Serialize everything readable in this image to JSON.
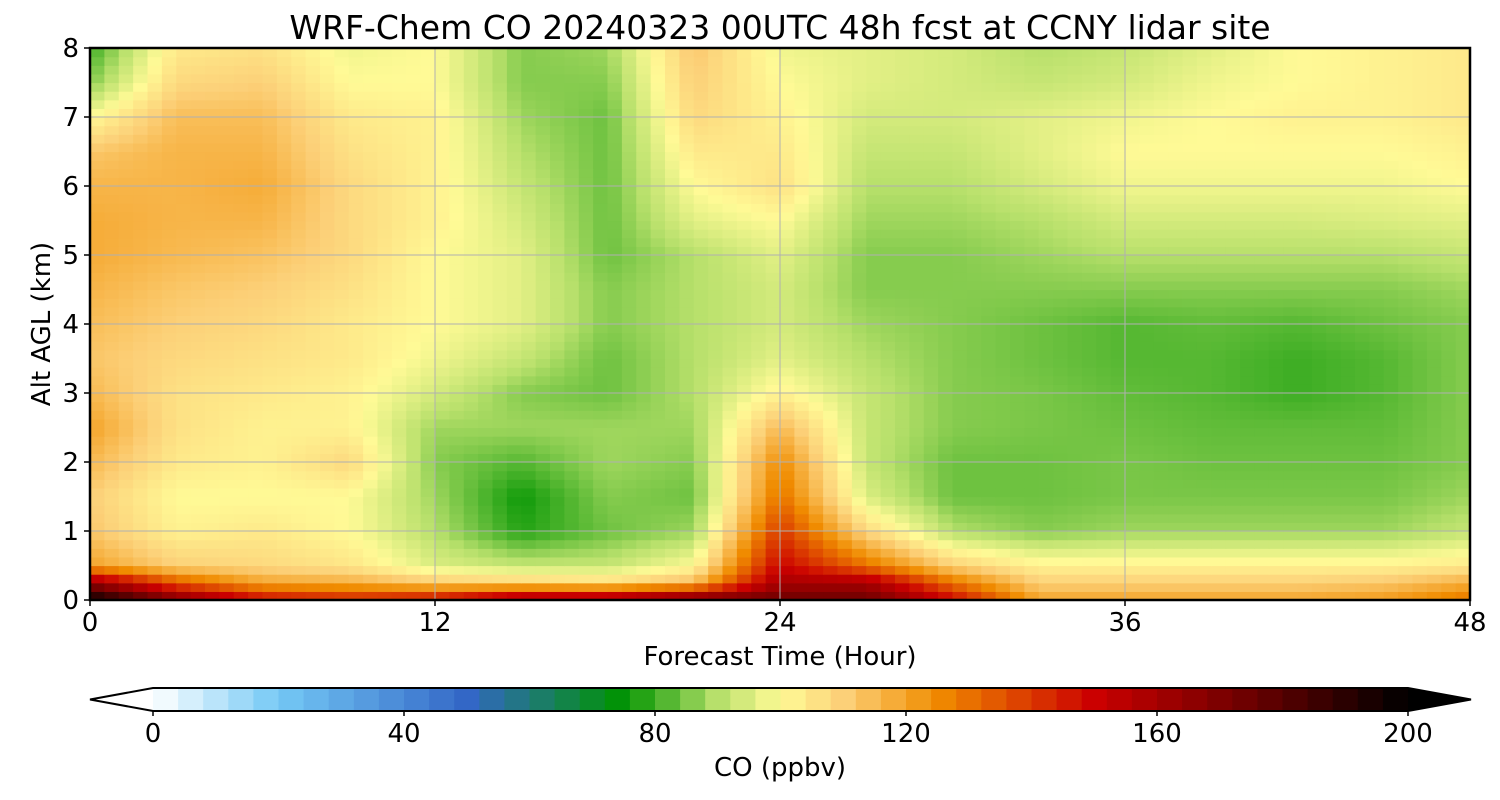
{
  "chart_data": {
    "type": "heatmap",
    "title": "WRF-Chem CO  20240323 00UTC 48h fcst at CCNY lidar site",
    "xlabel": "Forecast Time (Hour)",
    "ylabel": "Alt AGL (km)",
    "xlim": [
      0,
      48
    ],
    "ylim": [
      0,
      8
    ],
    "x_ticks": [
      "0",
      "12",
      "24",
      "36",
      "48"
    ],
    "y_ticks": [
      "0",
      "1",
      "2",
      "3",
      "4",
      "5",
      "6",
      "7",
      "8"
    ],
    "grid": true,
    "x": [
      0,
      3,
      6,
      9,
      12,
      15,
      18,
      21,
      24,
      27,
      30,
      33,
      36,
      39,
      42,
      45,
      48
    ],
    "y": [
      0,
      0.25,
      0.5,
      1,
      1.5,
      2,
      2.5,
      3,
      3.5,
      4,
      4.5,
      5,
      5.5,
      6,
      6.5,
      7,
      7.5,
      8
    ],
    "z": [
      [
        200,
        170,
        150,
        145,
        150,
        165,
        165,
        175,
        175,
        175,
        150,
        120,
        120,
        120,
        120,
        122,
        130
      ],
      [
        165,
        135,
        120,
        118,
        112,
        110,
        108,
        115,
        160,
        160,
        130,
        110,
        110,
        110,
        110,
        112,
        118
      ],
      [
        120,
        110,
        108,
        105,
        95,
        92,
        92,
        100,
        150,
        130,
        110,
        102,
        102,
        102,
        102,
        102,
        104
      ],
      [
        112,
        102,
        104,
        100,
        90,
        78,
        84,
        88,
        140,
        108,
        90,
        86,
        88,
        88,
        88,
        88,
        92
      ],
      [
        110,
        100,
        100,
        100,
        88,
        76,
        86,
        84,
        130,
        95,
        84,
        84,
        85,
        85,
        85,
        85,
        88
      ],
      [
        115,
        104,
        102,
        108,
        86,
        82,
        88,
        86,
        125,
        92,
        84,
        84,
        85,
        84,
        84,
        84,
        86
      ],
      [
        120,
        106,
        102,
        102,
        88,
        88,
        88,
        88,
        115,
        92,
        86,
        85,
        84,
        83,
        83,
        83,
        86
      ],
      [
        115,
        106,
        104,
        102,
        94,
        86,
        84,
        90,
        102,
        92,
        86,
        85,
        83,
        82,
        80,
        82,
        86
      ],
      [
        112,
        108,
        106,
        104,
        98,
        92,
        84,
        90,
        96,
        90,
        86,
        84,
        82,
        82,
        80,
        82,
        86
      ],
      [
        114,
        110,
        108,
        104,
        100,
        96,
        86,
        90,
        94,
        88,
        86,
        84,
        82,
        83,
        82,
        84,
        86
      ],
      [
        116,
        112,
        110,
        106,
        100,
        96,
        86,
        90,
        94,
        86,
        86,
        86,
        86,
        86,
        86,
        86,
        88
      ],
      [
        118,
        115,
        113,
        108,
        100,
        96,
        84,
        90,
        96,
        86,
        86,
        88,
        90,
        90,
        90,
        90,
        92
      ],
      [
        118,
        116,
        116,
        108,
        102,
        94,
        84,
        96,
        100,
        88,
        88,
        90,
        94,
        94,
        94,
        95,
        96
      ],
      [
        116,
        116,
        118,
        108,
        102,
        92,
        84,
        100,
        106,
        90,
        90,
        94,
        98,
        98,
        98,
        98,
        100
      ],
      [
        112,
        116,
        116,
        106,
        102,
        90,
        84,
        104,
        104,
        92,
        92,
        96,
        100,
        100,
        100,
        100,
        102
      ],
      [
        100,
        114,
        114,
        104,
        102,
        88,
        84,
        108,
        102,
        94,
        94,
        96,
        98,
        100,
        102,
        102,
        104
      ],
      [
        86,
        108,
        110,
        100,
        100,
        86,
        86,
        110,
        100,
        96,
        94,
        92,
        94,
        98,
        100,
        102,
        104
      ],
      [
        80,
        104,
        106,
        98,
        100,
        86,
        88,
        112,
        98,
        96,
        94,
        90,
        92,
        96,
        100,
        102,
        104
      ]
    ],
    "colorbar": {
      "label": "CO  (ppbv)",
      "min": 0,
      "max": 200,
      "ticks": [
        "0",
        "40",
        "80",
        "120",
        "160",
        "200"
      ],
      "extend": "both",
      "stops": [
        {
          "v": 0,
          "c": "#ffffff"
        },
        {
          "v": 20,
          "c": "#74c8f5"
        },
        {
          "v": 50,
          "c": "#3367c6"
        },
        {
          "v": 75,
          "c": "#009400"
        },
        {
          "v": 90,
          "c": "#b7e06b"
        },
        {
          "v": 100,
          "c": "#fffa96"
        },
        {
          "v": 110,
          "c": "#fcd078"
        },
        {
          "v": 125,
          "c": "#f08c00"
        },
        {
          "v": 150,
          "c": "#cb0000"
        },
        {
          "v": 175,
          "c": "#6a0000"
        },
        {
          "v": 200,
          "c": "#000000"
        }
      ]
    }
  }
}
